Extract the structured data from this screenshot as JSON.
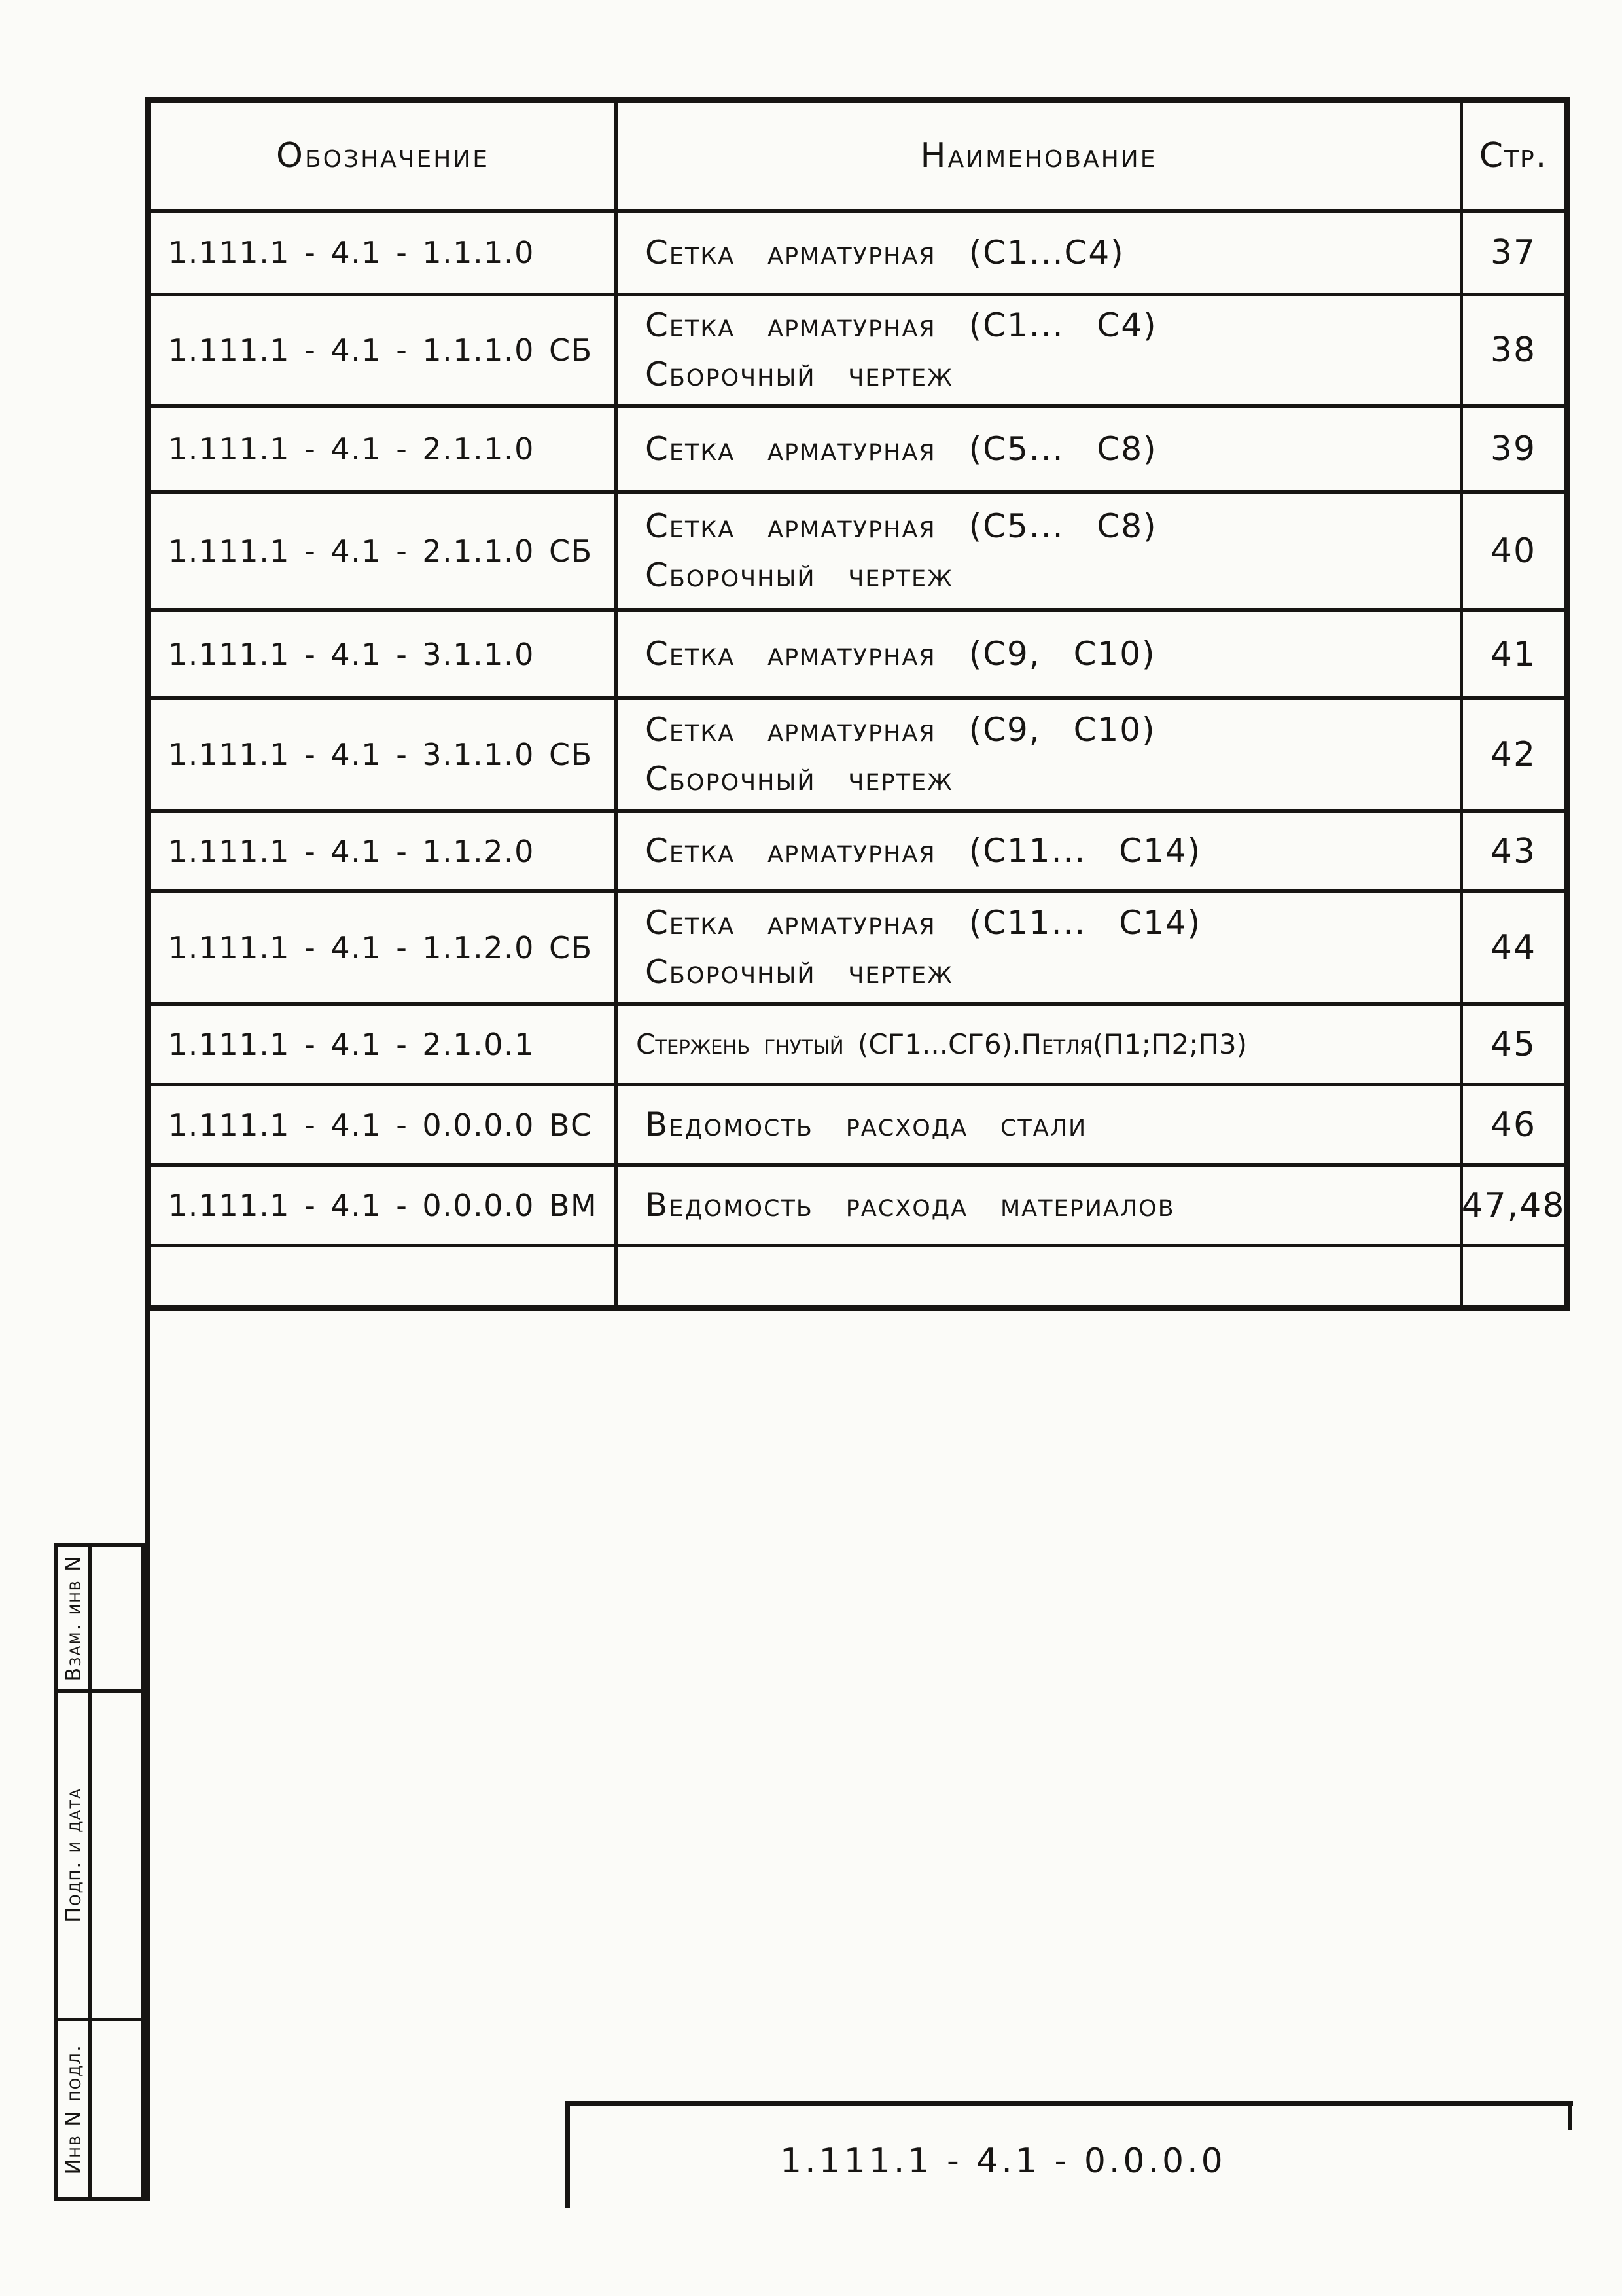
{
  "table": {
    "headers": {
      "designation": "Обозначение",
      "name": "Наименование",
      "page": "Стр."
    },
    "rows": [
      {
        "designation": "1.111.1 - 4.1 - 1.1.1.0",
        "name_line1": "Сетка арматурная (С1...С4)",
        "name_line2": "",
        "page": "37"
      },
      {
        "designation": "1.111.1 - 4.1 - 1.1.1.0 СБ",
        "name_line1": "Сетка арматурная (С1... С4)",
        "name_line2": "Сборочный чертеж",
        "page": "38"
      },
      {
        "designation": "1.111.1 - 4.1 - 2.1.1.0",
        "name_line1": "Сетка арматурная (С5... С8)",
        "name_line2": "",
        "page": "39"
      },
      {
        "designation": "1.111.1 - 4.1 - 2.1.1.0 СБ",
        "name_line1": "Сетка арматурная (С5... С8)",
        "name_line2": "Сборочный чертеж",
        "page": "40"
      },
      {
        "designation": "1.111.1 - 4.1 - 3.1.1.0",
        "name_line1": "Сетка арматурная (С9, С10)",
        "name_line2": "",
        "page": "41"
      },
      {
        "designation": "1.111.1 - 4.1 - 3.1.1.0 СБ",
        "name_line1": "Сетка арматурная (С9, С10)",
        "name_line2": "Сборочный чертеж",
        "page": "42"
      },
      {
        "designation": "1.111.1 - 4.1 - 1.1.2.0",
        "name_line1": "Сетка арматурная (С11... С14)",
        "name_line2": "",
        "page": "43"
      },
      {
        "designation": "1.111.1 - 4.1 - 1.1.2.0 СБ",
        "name_line1": "Сетка арматурная (С11... С14)",
        "name_line2": "Сборочный чертеж",
        "page": "44"
      },
      {
        "designation": "1.111.1 - 4.1 - 2.1.0.1",
        "name_line1": "Стержень гнутый (СГ1...СГ6).Петля(П1;П2;П3)",
        "name_line2": "",
        "page": "45"
      },
      {
        "designation": "1.111.1 - 4.1 - 0.0.0.0 ВС",
        "name_line1": "Ведомость расхода стали",
        "name_line2": "",
        "page": "46"
      },
      {
        "designation": "1.111.1 - 4.1 - 0.0.0.0 ВМ",
        "name_line1": "Ведомость расхода материалов",
        "name_line2": "",
        "page": "47,48"
      }
    ]
  },
  "stamp_column": {
    "labels": [
      "Взам. инв N",
      "Подп. и дата",
      "Инв N подл."
    ]
  },
  "title_block": {
    "designation": "1.111.1 - 4.1 - 0.0.0.0"
  }
}
